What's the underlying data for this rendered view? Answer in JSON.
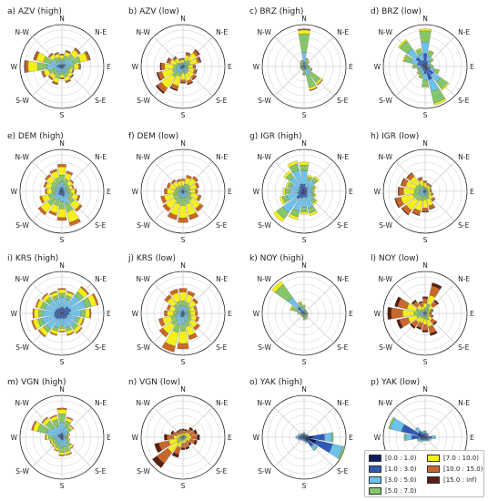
{
  "chart_data": {
    "type": "wind-rose",
    "directions": [
      "N",
      "NNE",
      "NE",
      "ENE",
      "E",
      "ESE",
      "SE",
      "SSE",
      "S",
      "SSW",
      "SW",
      "WSW",
      "W",
      "WNW",
      "NW",
      "NNW"
    ],
    "direction_labels": {
      "n": "N",
      "ne": "N-E",
      "e": "E",
      "se": "S-E",
      "s": "S",
      "sw": "S-W",
      "w": "W",
      "nw": "N-W"
    },
    "speed_bins": [
      "[0.0 : 1.0)",
      "[1.0 : 3.0)",
      "[3.0 : 5.0)",
      "[5.0 : 7.0)",
      "[7.0 : 10.0)",
      "[10.0 : 15.0)",
      "[15.0 : inf)"
    ],
    "bin_colors": [
      "#0c1f5c",
      "#2f5bb7",
      "#6ec2ea",
      "#86c56a",
      "#f5f01c",
      "#c8682a",
      "#5a1e12"
    ],
    "panels": [
      {
        "title": "a) AZV (high)",
        "freq": [
          30,
          40,
          55,
          70,
          45,
          30,
          35,
          40,
          30,
          45,
          40,
          50,
          90,
          70,
          40,
          35
        ],
        "mix": [
          0.03,
          0.1,
          0.27,
          0.25,
          0.25,
          0.08,
          0.02
        ]
      },
      {
        "title": "b) AZV (low)",
        "freq": [
          20,
          35,
          50,
          45,
          30,
          35,
          40,
          45,
          40,
          60,
          80,
          65,
          55,
          40,
          30,
          20
        ],
        "mix": [
          0.02,
          0.08,
          0.15,
          0.15,
          0.4,
          0.15,
          0.05
        ]
      },
      {
        "title": "c) BRZ (high)",
        "freq": [
          90,
          20,
          15,
          10,
          12,
          20,
          55,
          60,
          20,
          10,
          8,
          10,
          8,
          10,
          12,
          15
        ],
        "mix": [
          0.02,
          0.1,
          0.25,
          0.5,
          0.1,
          0.02,
          0.01
        ]
      },
      {
        "title": "d) BRZ (low)",
        "freq": [
          90,
          40,
          25,
          15,
          20,
          35,
          70,
          95,
          50,
          30,
          25,
          20,
          30,
          55,
          80,
          45
        ],
        "mix": [
          0.1,
          0.25,
          0.3,
          0.3,
          0.05,
          0,
          0
        ]
      },
      {
        "title": "e) DEM (high)",
        "freq": [
          65,
          50,
          35,
          30,
          35,
          45,
          60,
          85,
          70,
          60,
          70,
          55,
          40,
          45,
          50,
          55
        ],
        "mix": [
          0.05,
          0.1,
          0.2,
          0.25,
          0.3,
          0.1,
          0
        ]
      },
      {
        "title": "f) DEM (low)",
        "freq": [
          30,
          40,
          45,
          40,
          35,
          45,
          60,
          70,
          75,
          70,
          60,
          55,
          45,
          40,
          35,
          30
        ],
        "mix": [
          0.02,
          0.05,
          0.15,
          0.23,
          0.4,
          0.15,
          0
        ]
      },
      {
        "title": "g) IGR (high)",
        "freq": [
          70,
          40,
          45,
          30,
          25,
          30,
          40,
          60,
          55,
          70,
          90,
          60,
          50,
          45,
          60,
          75
        ],
        "mix": [
          0.1,
          0.15,
          0.45,
          0.2,
          0.1,
          0,
          0
        ]
      },
      {
        "title": "h) IGR (low)",
        "freq": [
          25,
          20,
          20,
          15,
          15,
          20,
          30,
          45,
          50,
          60,
          70,
          75,
          65,
          60,
          55,
          35
        ],
        "mix": [
          0.02,
          0.05,
          0.13,
          0.2,
          0.4,
          0.17,
          0.03
        ]
      },
      {
        "title": "i) KRS (high)",
        "freq": [
          60,
          55,
          80,
          90,
          70,
          55,
          60,
          55,
          45,
          55,
          70,
          75,
          70,
          65,
          60,
          55
        ],
        "mix": [
          0.05,
          0.2,
          0.4,
          0.15,
          0.15,
          0.05,
          0
        ]
      },
      {
        "title": "j) KRS (low)",
        "freq": [
          60,
          55,
          45,
          35,
          35,
          40,
          50,
          65,
          85,
          95,
          70,
          60,
          45,
          40,
          55,
          60
        ],
        "mix": [
          0.02,
          0.08,
          0.2,
          0.2,
          0.35,
          0.15,
          0
        ]
      },
      {
        "title": "k) NOY (high)",
        "freq": [
          20,
          10,
          8,
          8,
          10,
          10,
          12,
          15,
          15,
          10,
          8,
          10,
          15,
          35,
          95,
          30
        ],
        "mix": [
          0.05,
          0.15,
          0.3,
          0.4,
          0.1,
          0,
          0
        ]
      },
      {
        "title": "l) NOY (low)",
        "freq": [
          40,
          75,
          40,
          20,
          15,
          20,
          35,
          55,
          45,
          40,
          45,
          70,
          90,
          75,
          40,
          30
        ],
        "mix": [
          0.02,
          0.03,
          0.1,
          0.15,
          0.3,
          0.3,
          0.1
        ]
      },
      {
        "title": "m) VGN (high)",
        "freq": [
          70,
          50,
          35,
          20,
          15,
          20,
          35,
          45,
          45,
          35,
          30,
          30,
          40,
          75,
          60,
          55
        ],
        "mix": [
          0.05,
          0.1,
          0.35,
          0.3,
          0.15,
          0.05,
          0
        ]
      },
      {
        "title": "n) VGN (low)",
        "freq": [
          20,
          20,
          30,
          35,
          40,
          35,
          25,
          30,
          30,
          50,
          90,
          70,
          45,
          30,
          20,
          20
        ],
        "mix": [
          0.01,
          0.03,
          0.06,
          0.1,
          0.3,
          0.35,
          0.15
        ]
      },
      {
        "title": "o) YAK (high)",
        "freq": [
          12,
          8,
          10,
          12,
          70,
          100,
          40,
          15,
          10,
          8,
          10,
          15,
          20,
          15,
          12,
          10
        ],
        "mix": [
          0.3,
          0.4,
          0.25,
          0.05,
          0,
          0,
          0
        ]
      },
      {
        "title": "p) YAK (low)",
        "freq": [
          15,
          12,
          10,
          10,
          25,
          15,
          12,
          10,
          8,
          10,
          15,
          20,
          50,
          90,
          30,
          15
        ],
        "mix": [
          0.2,
          0.45,
          0.3,
          0.05,
          0,
          0,
          0
        ]
      }
    ],
    "legend": {
      "position": "lower-right"
    }
  }
}
